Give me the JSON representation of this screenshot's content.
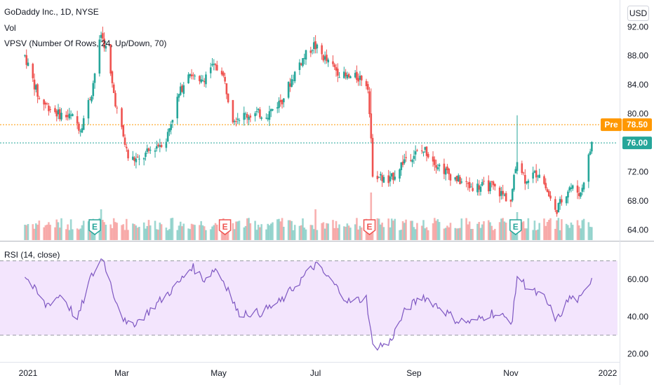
{
  "legend": {
    "title": "GoDaddy Inc., 1D, NYSE",
    "vol": "Vol",
    "vpsv": "VPSV (Number Of Rows, 24, Up/Down, 70)",
    "rsi": "RSI (14, close)"
  },
  "currency": "USD",
  "price_tags": {
    "pre_label": "Pre",
    "pre_value": "78.50",
    "last_value": "76.00"
  },
  "colors": {
    "up": "#26a69a",
    "down": "#ef5350",
    "rsi_line": "#7e57c2",
    "rsi_band": "#f3e5fd",
    "pre_line": "#ff9800",
    "last_line": "#26a69a"
  },
  "earnings_markers": [
    {
      "label": "E",
      "date": "2021-02-12",
      "color": "#26a69a"
    },
    {
      "label": "E",
      "date": "2021-05-05",
      "color": "#ef5350"
    },
    {
      "label": "E",
      "date": "2021-08-04",
      "color": "#ef5350"
    },
    {
      "label": "E",
      "date": "2021-11-04",
      "color": "#26a69a"
    }
  ],
  "chart_data": [
    {
      "type": "candlestick",
      "ylim": [
        62.5,
        95.5
      ],
      "y_ticks": [
        "64.00",
        "68.00",
        "72.00",
        "76.00",
        "80.00",
        "84.00",
        "88.00",
        "92.00"
      ],
      "x_ticks": [
        "2021",
        "Mar",
        "May",
        "Jul",
        "Sep",
        "Nov",
        "2022"
      ],
      "pre_price": 78.5,
      "last_price": 76.0,
      "waypoints": [
        [
          "2020-12-30",
          88.0
        ],
        [
          "2021-01-08",
          82.0
        ],
        [
          "2021-01-20",
          80.0
        ],
        [
          "2021-01-29",
          79.5
        ],
        [
          "2021-02-03",
          78.0
        ],
        [
          "2021-02-10",
          83.0
        ],
        [
          "2021-02-16",
          91.0
        ],
        [
          "2021-02-19",
          89.0
        ],
        [
          "2021-02-23",
          84.0
        ],
        [
          "2021-02-26",
          80.5
        ],
        [
          "2021-03-05",
          74.0
        ],
        [
          "2021-03-12",
          73.5
        ],
        [
          "2021-03-19",
          75.0
        ],
        [
          "2021-03-29",
          76.5
        ],
        [
          "2021-04-05",
          82.0
        ],
        [
          "2021-04-12",
          86.0
        ],
        [
          "2021-04-19",
          84.0
        ],
        [
          "2021-04-26",
          86.5
        ],
        [
          "2021-05-03",
          86.0
        ],
        [
          "2021-05-10",
          79.5
        ],
        [
          "2021-05-24",
          80.0
        ],
        [
          "2021-06-01",
          80.0
        ],
        [
          "2021-06-10",
          82.0
        ],
        [
          "2021-06-21",
          87.0
        ],
        [
          "2021-06-30",
          89.5
        ],
        [
          "2021-07-09",
          87.0
        ],
        [
          "2021-07-20",
          85.0
        ],
        [
          "2021-07-30",
          85.0
        ],
        [
          "2021-08-03",
          84.0
        ],
        [
          "2021-08-06",
          72.0
        ],
        [
          "2021-08-16",
          70.5
        ],
        [
          "2021-08-27",
          74.0
        ],
        [
          "2021-09-08",
          75.0
        ],
        [
          "2021-09-16",
          73.0
        ],
        [
          "2021-09-24",
          71.5
        ],
        [
          "2021-10-06",
          70.0
        ],
        [
          "2021-10-20",
          70.0
        ],
        [
          "2021-11-01",
          68.0
        ],
        [
          "2021-11-05",
          74.0
        ],
        [
          "2021-11-10",
          71.0
        ],
        [
          "2021-11-19",
          72.0
        ],
        [
          "2021-11-29",
          66.5
        ],
        [
          "2021-12-08",
          70.0
        ],
        [
          "2021-12-15",
          69.0
        ],
        [
          "2021-12-22",
          76.0
        ]
      ]
    },
    {
      "type": "line",
      "name": "RSI (14, close)",
      "ylim": [
        16,
        80
      ],
      "y_ticks": [
        "20.00",
        "40.00",
        "60.00"
      ],
      "band": [
        30,
        70
      ],
      "waypoints": [
        [
          "2020-12-30",
          62
        ],
        [
          "2021-01-12",
          46
        ],
        [
          "2021-01-22",
          52
        ],
        [
          "2021-02-01",
          38
        ],
        [
          "2021-02-09",
          60
        ],
        [
          "2021-02-17",
          72
        ],
        [
          "2021-02-24",
          52
        ],
        [
          "2021-03-04",
          35
        ],
        [
          "2021-03-12",
          38
        ],
        [
          "2021-03-22",
          46
        ],
        [
          "2021-04-06",
          58
        ],
        [
          "2021-04-14",
          67
        ],
        [
          "2021-04-22",
          60
        ],
        [
          "2021-04-29",
          66
        ],
        [
          "2021-05-07",
          55
        ],
        [
          "2021-05-13",
          42
        ],
        [
          "2021-05-27",
          42
        ],
        [
          "2021-06-09",
          48
        ],
        [
          "2021-06-22",
          60
        ],
        [
          "2021-07-01",
          68
        ],
        [
          "2021-07-12",
          58
        ],
        [
          "2021-07-22",
          48
        ],
        [
          "2021-08-02",
          50
        ],
        [
          "2021-08-06",
          24
        ],
        [
          "2021-08-16",
          25
        ],
        [
          "2021-08-27",
          44
        ],
        [
          "2021-09-07",
          51
        ],
        [
          "2021-09-17",
          45
        ],
        [
          "2021-09-28",
          38
        ],
        [
          "2021-10-08",
          37
        ],
        [
          "2021-10-20",
          42
        ],
        [
          "2021-11-02",
          38
        ],
        [
          "2021-11-05",
          62
        ],
        [
          "2021-11-12",
          55
        ],
        [
          "2021-11-22",
          50
        ],
        [
          "2021-11-30",
          38
        ],
        [
          "2021-12-08",
          50
        ],
        [
          "2021-12-15",
          49
        ],
        [
          "2021-12-23",
          63
        ]
      ]
    }
  ]
}
